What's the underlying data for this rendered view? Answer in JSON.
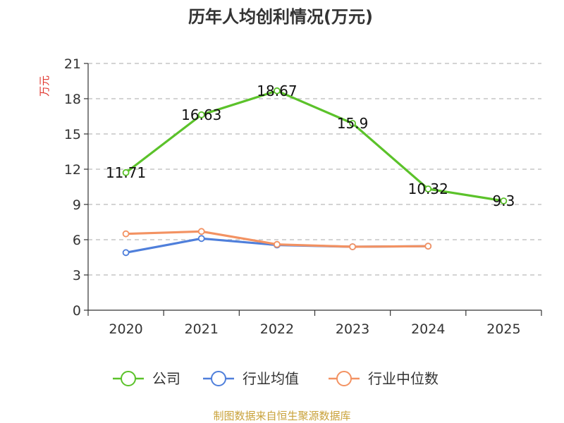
{
  "chart_data": {
    "type": "line",
    "title": "历年人均创利情况(万元)",
    "ylabel": "万元",
    "xlabel": "",
    "categories": [
      "2020",
      "2021",
      "2022",
      "2023",
      "2024",
      "2025"
    ],
    "ylim": [
      0,
      21
    ],
    "yticks": [
      0,
      3,
      6,
      9,
      12,
      15,
      18,
      21
    ],
    "grid": true,
    "legend_position": "bottom",
    "series": [
      {
        "name": "公司",
        "color": "#5bc22a",
        "values": [
          11.71,
          16.63,
          18.67,
          15.9,
          10.32,
          9.3
        ],
        "labels": [
          "11.71",
          "16.63",
          "18.67",
          "15.9",
          "10.32",
          "9.3"
        ]
      },
      {
        "name": "行业均值",
        "color": "#4f7fdb",
        "values": [
          4.9,
          6.1,
          5.55,
          5.4,
          5.45,
          null
        ]
      },
      {
        "name": "行业中位数",
        "color": "#f39262",
        "values": [
          6.5,
          6.7,
          5.6,
          5.4,
          5.45,
          null
        ]
      }
    ],
    "source": "制图数据来自恒生聚源数据库",
    "colors": {
      "axis": "#333333",
      "grid": "#bbbbbb",
      "ylabel": "#e0342c",
      "source": "#c9a23a"
    }
  }
}
